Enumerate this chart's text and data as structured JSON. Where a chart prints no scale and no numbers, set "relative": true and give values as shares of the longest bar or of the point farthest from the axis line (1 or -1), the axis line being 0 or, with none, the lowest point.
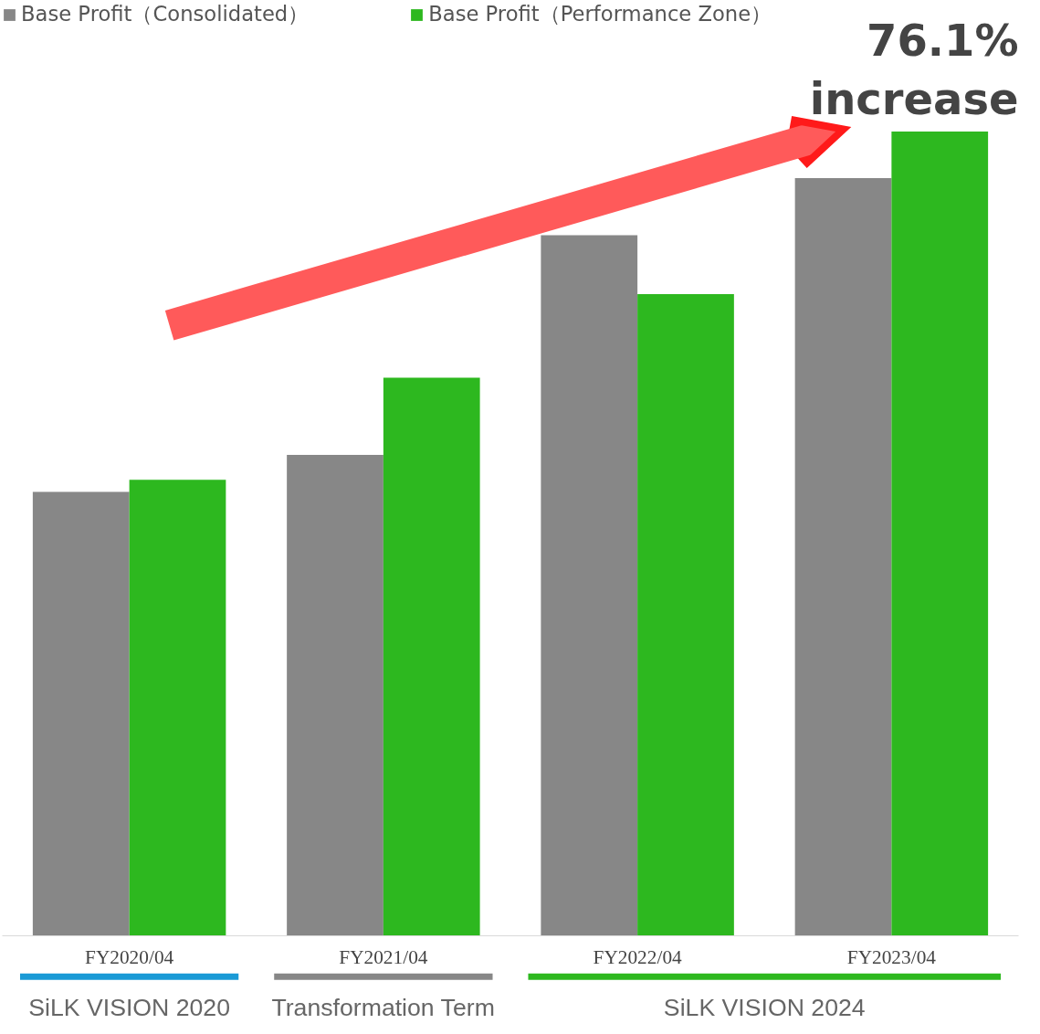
{
  "chart_data": {
    "type": "bar",
    "relative": true,
    "categories": [
      "FY2020/04",
      "FY2021/04",
      "FY2022/04",
      "FY2023/04"
    ],
    "series": [
      {
        "name": "Base Profit（Consolidated）",
        "color": "#878787",
        "values": [
          0.552,
          0.598,
          0.871,
          0.942
        ]
      },
      {
        "name": "Base Profit（Performance Zone）",
        "color": "#2db81f",
        "values": [
          0.567,
          0.694,
          0.798,
          1.0
        ]
      }
    ],
    "legend": "top left",
    "grid": false,
    "annotations": [
      "76.1%\nincrease",
      "SiLK VISION 2020",
      "Transformation Term",
      "SiLK VISION 2024"
    ]
  }
}
